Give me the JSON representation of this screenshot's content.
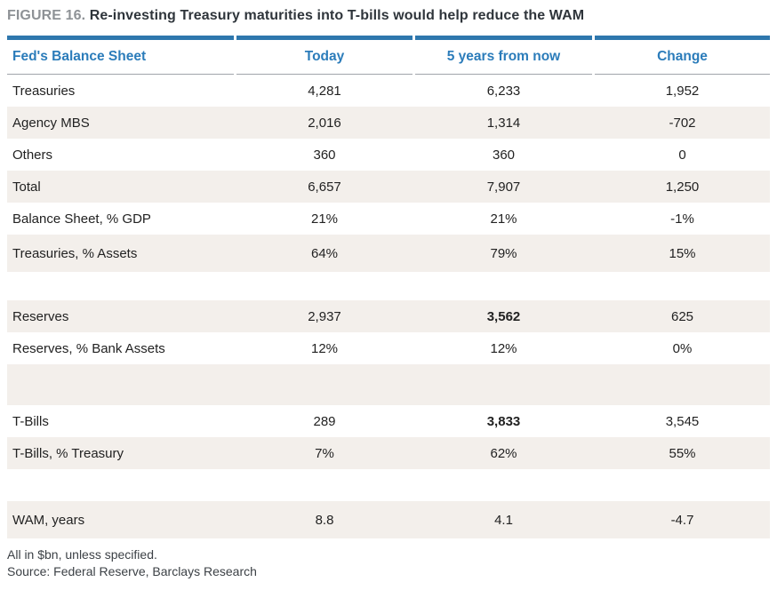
{
  "figure": {
    "label": "FIGURE 16.",
    "title": "Re-investing Treasury maturities into T-bills would help reduce the WAM"
  },
  "colors": {
    "accent_blue": "#2b7cba",
    "rule_blue": "#2e77ad",
    "row_beige": "#f3efeb",
    "rule_gray": "#a0a5aa"
  },
  "table": {
    "columns": [
      "Fed's Balance Sheet",
      "Today",
      "5 years from now",
      "Change"
    ],
    "rows": [
      {
        "kind": "data",
        "label": "Treasuries",
        "today": "4,281",
        "five_years": "6,233",
        "change": "1,952"
      },
      {
        "kind": "data",
        "label": "Agency MBS",
        "today": "2,016",
        "five_years": "1,314",
        "change": "-702"
      },
      {
        "kind": "data",
        "label": "Others",
        "today": "360",
        "five_years": "360",
        "change": "0"
      },
      {
        "kind": "data",
        "label": "Total",
        "today": "6,657",
        "five_years": "7,907",
        "change": "1,250"
      },
      {
        "kind": "data",
        "label": "Balance Sheet, % GDP",
        "today": "21%",
        "five_years": "21%",
        "change": "-1%"
      },
      {
        "kind": "data-tall",
        "label": "Treasuries, % Assets",
        "today": "64%",
        "five_years": "79%",
        "change": "15%"
      },
      {
        "kind": "spacer-sm"
      },
      {
        "kind": "data",
        "label": "Reserves",
        "today": "2,937",
        "five_years": "3,562",
        "change": "625",
        "five_years_bold": true
      },
      {
        "kind": "data",
        "label": "Reserves, % Bank Assets",
        "today": "12%",
        "five_years": "12%",
        "change": "0%"
      },
      {
        "kind": "spacer-lg"
      },
      {
        "kind": "data",
        "label": "T-Bills",
        "today": "289",
        "five_years": "3,833",
        "change": "3,545",
        "five_years_bold": true
      },
      {
        "kind": "data",
        "label": "T-Bills, % Treasury",
        "today": "7%",
        "five_years": "62%",
        "change": "55%"
      },
      {
        "kind": "spacer-md"
      },
      {
        "kind": "data-tall",
        "label": "WAM, years",
        "today": "8.8",
        "five_years": "4.1",
        "change": "-4.7"
      }
    ]
  },
  "footnotes": [
    "All in $bn, unless specified.",
    "Source: Federal Reserve, Barclays Research"
  ]
}
